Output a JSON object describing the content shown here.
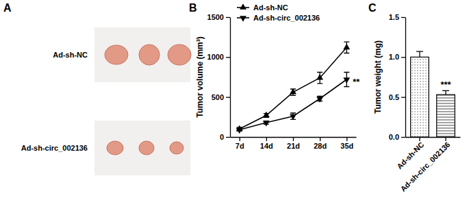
{
  "panel_a": {
    "label": "A",
    "groups": [
      "Ad-sh-NC",
      "Ad-sh-circ_002136"
    ]
  },
  "chart_data": [
    {
      "type": "line",
      "title": "B",
      "y_label": "Tumor volume (mm³)",
      "categories": [
        "7d",
        "14d",
        "21d",
        "28d",
        "35d"
      ],
      "series": [
        {
          "name": "Ad-sh-NC",
          "color": "#000000",
          "marker": "triangle-up",
          "values": [
            100,
            270,
            560,
            740,
            1120
          ],
          "errors": [
            20,
            25,
            40,
            70,
            70
          ]
        },
        {
          "name": "Ad-sh-circ_002136",
          "color": "#000000",
          "marker": "triangle-down",
          "values": [
            90,
            180,
            260,
            480,
            720
          ],
          "errors": [
            15,
            20,
            40,
            30,
            90
          ]
        }
      ],
      "ylim": [
        0,
        1500
      ],
      "yticks": [
        0,
        500,
        1000,
        1500
      ],
      "legend": "upper-left",
      "annotations": [
        {
          "text": "**",
          "series": "Ad-sh-circ_002136",
          "category": "35d"
        }
      ]
    },
    {
      "type": "bar",
      "title": "C",
      "y_label": "Tumor weight (mg)",
      "categories": [
        "Ad-sh-NC",
        "Ad-sh-circ_002136"
      ],
      "values": [
        1.0,
        0.53
      ],
      "errors": [
        0.07,
        0.05
      ],
      "ylim": [
        0,
        1.5
      ],
      "yticks": [
        {
          "value": 0,
          "label": "0.0"
        },
        {
          "value": 0.5,
          "label": "0.5"
        },
        {
          "value": 1,
          "label": "1.0"
        },
        {
          "value": 1.5,
          "label": "1.5"
        }
      ],
      "annotations": [
        {
          "text": "***",
          "category": "Ad-sh-circ_002136"
        }
      ]
    }
  ]
}
